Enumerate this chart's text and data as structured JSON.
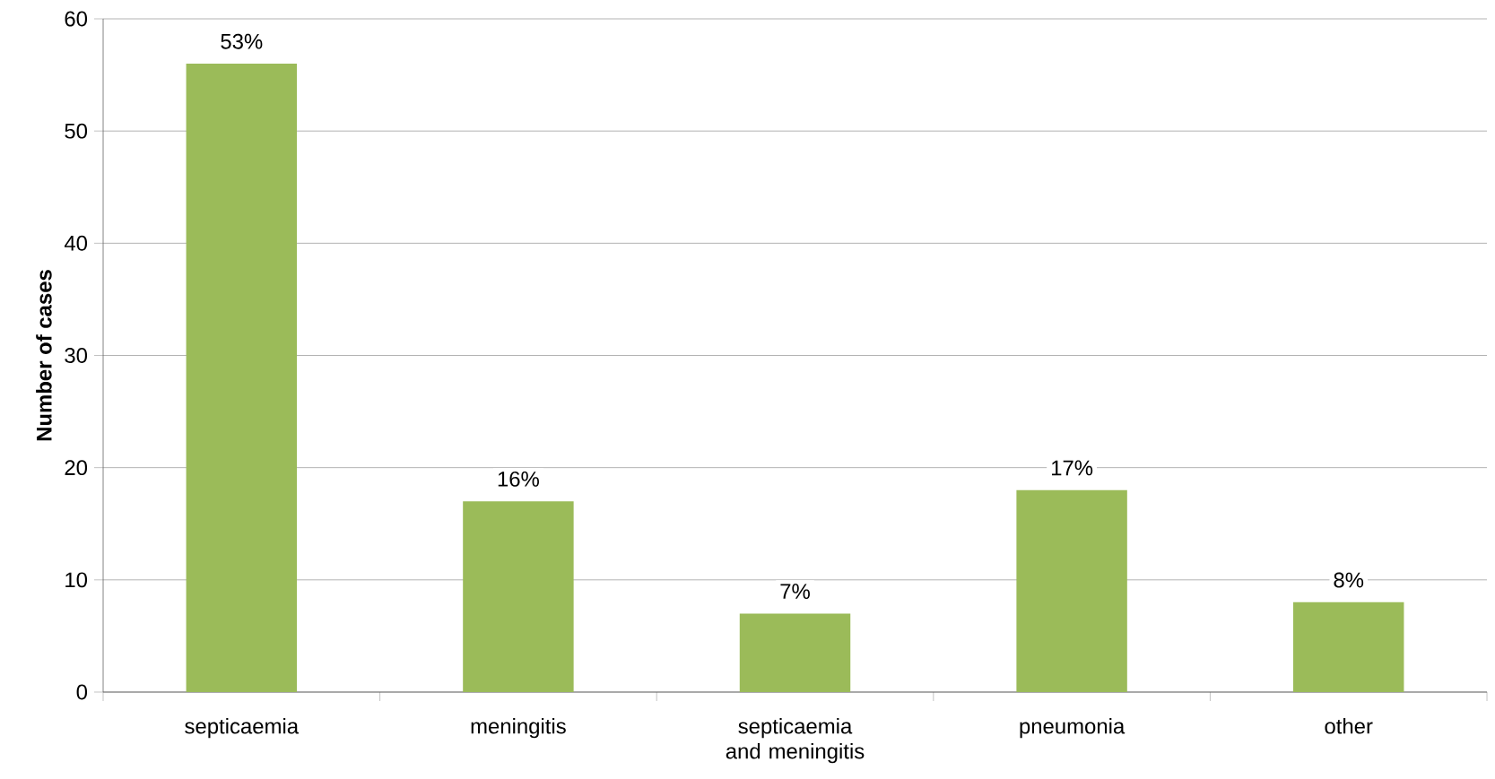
{
  "chart_data": {
    "type": "bar",
    "ylabel": "Number of cases",
    "categories": [
      "septicaemia",
      "meningitis",
      "septicaemia and meningitis",
      "pneumonia",
      "other"
    ],
    "values": [
      56,
      17,
      7,
      18,
      8
    ],
    "annotations": [
      {
        "text": "53%",
        "x": "septicaemia",
        "y": 56
      },
      {
        "text": "16%",
        "x": "meningitis",
        "y": 17
      },
      {
        "text": "7%",
        "x": "septicaemia and meningitis",
        "y": 7
      },
      {
        "text": "17%",
        "x": "pneumonia",
        "y": 18
      },
      {
        "text": "8%",
        "x": "other",
        "y": 8
      }
    ],
    "color": "#9bbb59",
    "ylim": [
      0,
      60
    ],
    "yticks": [
      0,
      10,
      20,
      30,
      40,
      50,
      60
    ],
    "grid": "y"
  }
}
